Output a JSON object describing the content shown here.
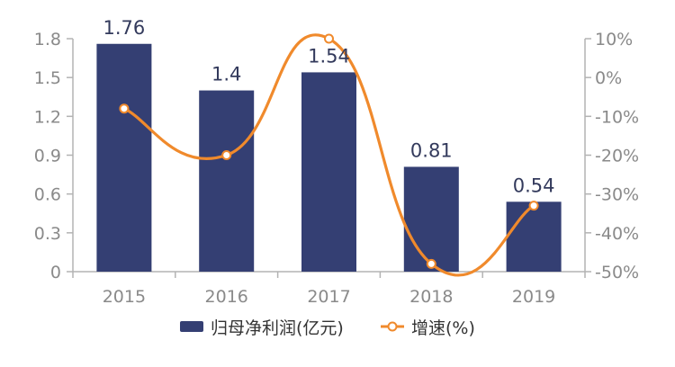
{
  "chart_data": {
    "type": "bar",
    "categories": [
      "2015",
      "2016",
      "2017",
      "2018",
      "2019"
    ],
    "series": [
      {
        "name": "归母净利润(亿元)",
        "type": "bar",
        "axis": "left",
        "values": [
          1.76,
          1.4,
          1.54,
          0.81,
          0.54
        ],
        "data_labels": [
          "1.76",
          "1.4",
          "1.54",
          "0.81",
          "0.54"
        ],
        "color": "#343f73"
      },
      {
        "name": "增速(%)",
        "type": "line",
        "axis": "right",
        "smooth": true,
        "values": [
          -8,
          -20,
          10,
          -48,
          -33
        ],
        "color": "#f08a2c"
      }
    ],
    "y_left": {
      "min": 0,
      "max": 1.8,
      "ticks": [
        "0",
        "0.3",
        "0.6",
        "0.9",
        "1.2",
        "1.5",
        "1.8"
      ]
    },
    "y_right": {
      "min": -50,
      "max": 10,
      "ticks": [
        "-50%",
        "-40%",
        "-30%",
        "-20%",
        "-10%",
        "0%",
        "10%"
      ]
    },
    "grid": false,
    "legend": "bottom-center"
  }
}
